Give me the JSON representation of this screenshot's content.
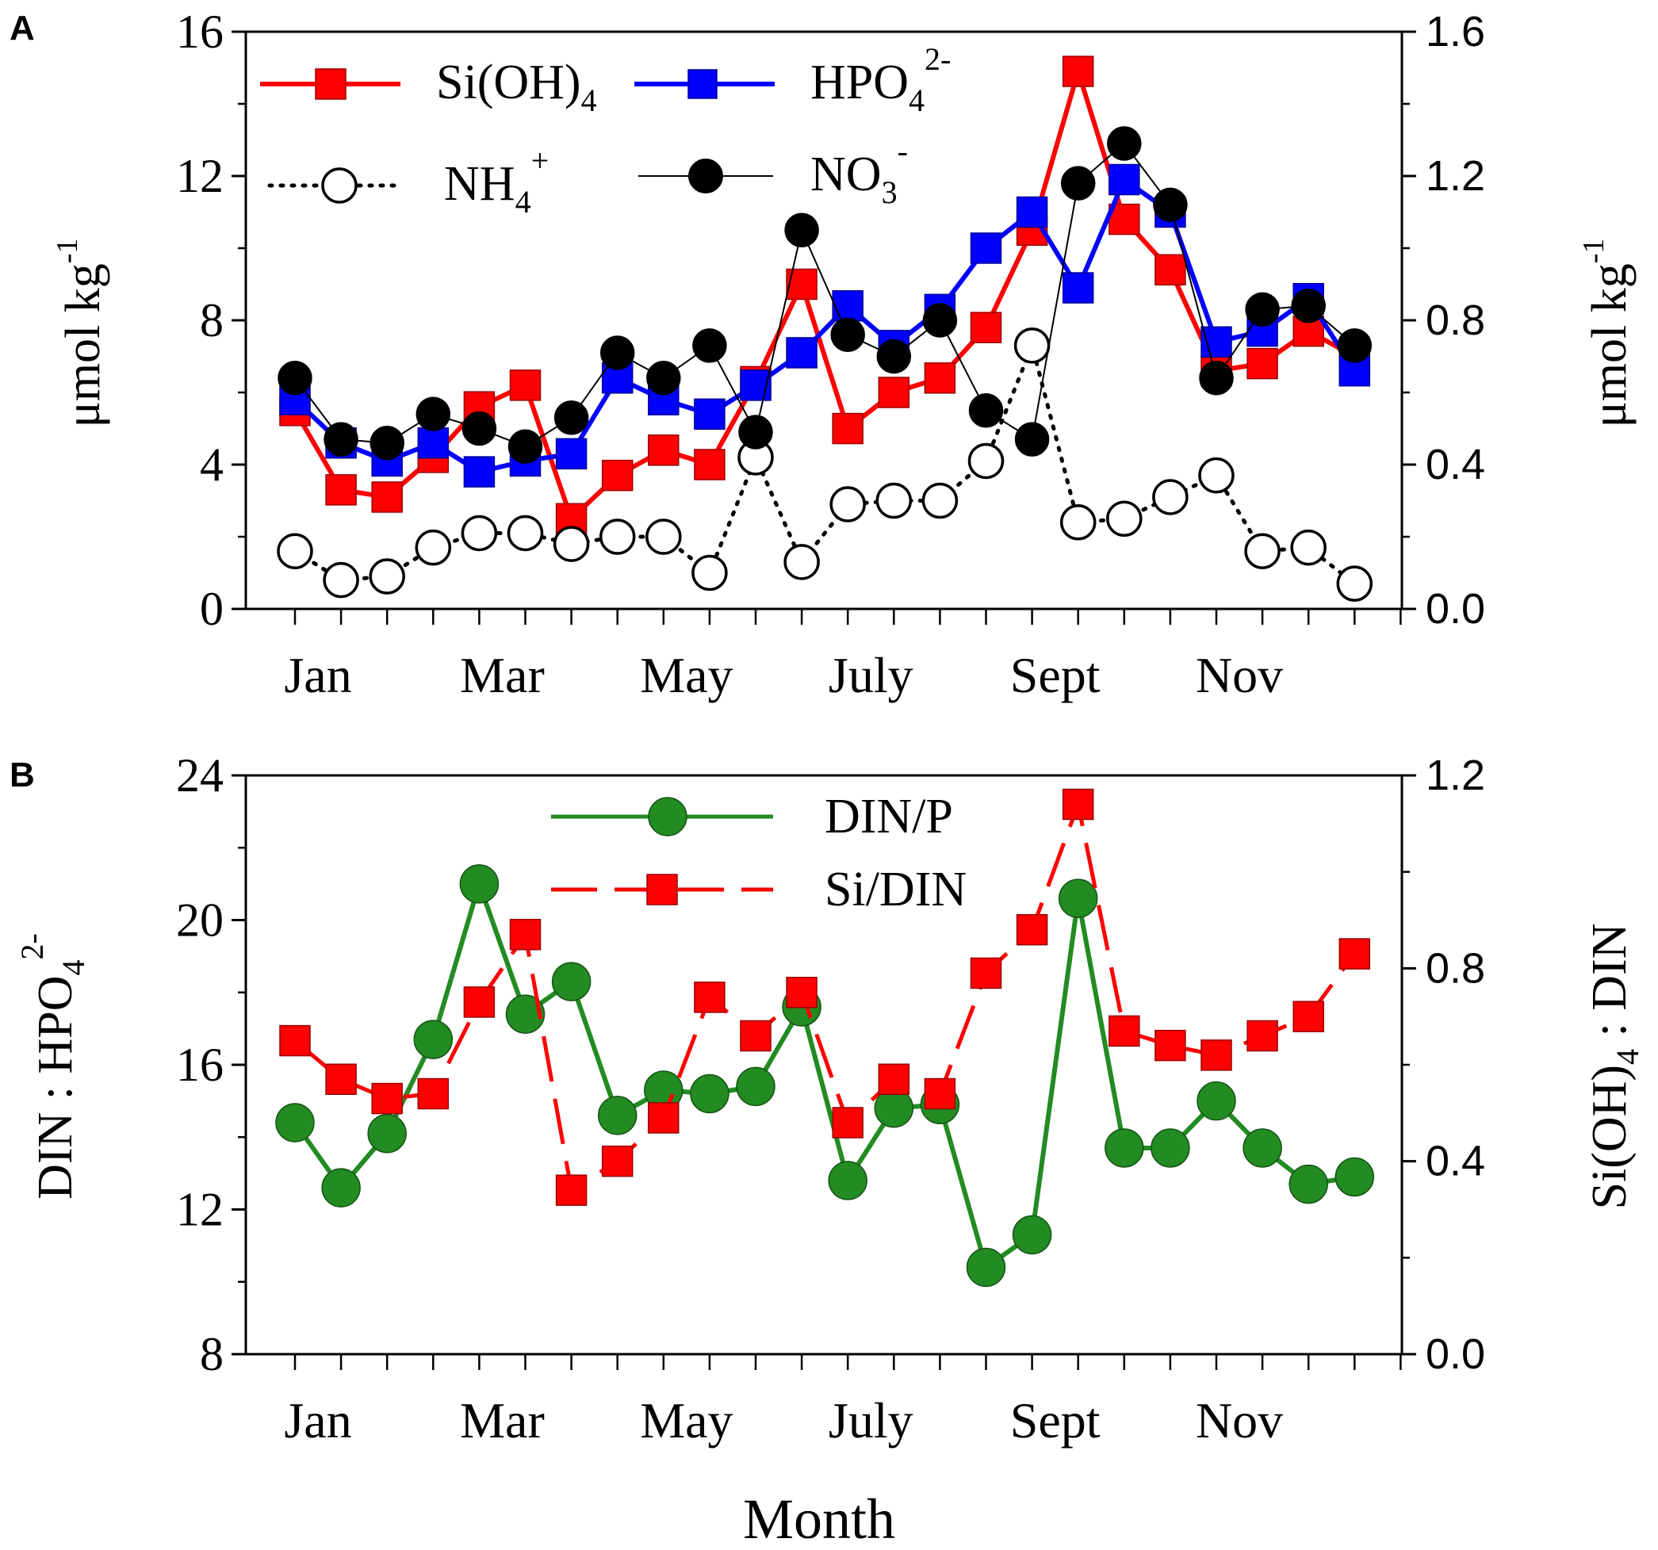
{
  "chart_data": [
    {
      "type": "line",
      "panel_label": "A",
      "title": "",
      "x": [
        1,
        2,
        3,
        4,
        5,
        6,
        7,
        8,
        9,
        10,
        11,
        12,
        13,
        14,
        15,
        16,
        17,
        18,
        19,
        20,
        21,
        22,
        23,
        24,
        25
      ],
      "xlabel": "",
      "x_tick_labels": [
        "Jan",
        "Mar",
        "May",
        "July",
        "Sept",
        "Nov"
      ],
      "x_tick_positions": [
        1.5,
        5.5,
        9.5,
        13.5,
        17.5,
        21.5
      ],
      "ylabel": "μmol kg",
      "ylabel_sup": "-1",
      "ylim": [
        0,
        16
      ],
      "y_ticks": [
        0,
        4,
        8,
        12,
        16
      ],
      "y_tick_labels": [
        "0",
        "4",
        "8",
        "12",
        "16"
      ],
      "ylabel_right": "μmol kg",
      "ylabel_right_sup": "-1",
      "ylim_right": [
        0,
        1.6
      ],
      "y_ticks_right": [
        0,
        0.4,
        0.8,
        1.2,
        1.6
      ],
      "y_tick_labels_right": [
        "0.0",
        "0.4",
        "0.8",
        "1.2",
        "1.6"
      ],
      "grid": false,
      "legend_position": "top-left",
      "series": [
        {
          "name": "Si(OH)4",
          "label": "Si(OH)",
          "sub": "4",
          "axis": "left",
          "color": "#ff0000",
          "marker": "square",
          "line": "solid",
          "values": [
            5.5,
            3.3,
            3.1,
            4.2,
            5.6,
            6.2,
            2.5,
            3.7,
            4.4,
            4.0,
            6.3,
            9.0,
            5.0,
            6.0,
            6.4,
            7.8,
            10.5,
            14.9,
            10.8,
            9.4,
            6.6,
            6.8,
            7.7,
            7.0,
            null
          ]
        },
        {
          "name": "HPO4 2-",
          "label": "HPO",
          "sub": "4",
          "sup": "2-",
          "axis": "right",
          "color": "#0000ff",
          "marker": "square",
          "line": "solid",
          "values": [
            0.58,
            0.46,
            0.41,
            0.46,
            0.38,
            0.41,
            0.43,
            0.64,
            0.58,
            0.54,
            0.62,
            0.71,
            0.84,
            0.73,
            0.83,
            1.0,
            1.1,
            0.89,
            1.19,
            1.1,
            0.74,
            0.77,
            0.86,
            0.66,
            null
          ]
        },
        {
          "name": "NH4+",
          "label": "NH",
          "sub": "4",
          "sup": "+",
          "axis": "left",
          "color": "#000000",
          "marker": "open-circle",
          "line": "dotted",
          "values": [
            1.6,
            0.8,
            0.9,
            1.7,
            2.1,
            2.1,
            1.8,
            2.0,
            2.0,
            1.0,
            4.2,
            1.3,
            2.9,
            3.0,
            3.0,
            4.1,
            7.3,
            2.4,
            2.5,
            3.1,
            3.7,
            1.6,
            1.7,
            0.7,
            null
          ]
        },
        {
          "name": "NO3-",
          "label": "NO",
          "sub": "3",
          "sup": "-",
          "axis": "left",
          "color": "#000000",
          "marker": "filled-circle",
          "line": "thin-solid",
          "values": [
            6.4,
            4.7,
            4.6,
            5.4,
            5.0,
            4.5,
            5.3,
            7.1,
            6.4,
            7.3,
            4.9,
            10.5,
            7.6,
            7.0,
            8.0,
            5.5,
            4.7,
            11.8,
            12.9,
            11.2,
            6.4,
            8.3,
            8.4,
            7.3,
            null
          ]
        }
      ]
    },
    {
      "type": "line",
      "panel_label": "B",
      "title": "",
      "x": [
        1,
        2,
        3,
        4,
        5,
        6,
        7,
        8,
        9,
        10,
        11,
        12,
        13,
        14,
        15,
        16,
        17,
        18,
        19,
        20,
        21,
        22,
        23,
        24,
        25
      ],
      "xlabel": "Month",
      "x_tick_labels": [
        "Jan",
        "Mar",
        "May",
        "July",
        "Sept",
        "Nov"
      ],
      "x_tick_positions": [
        1.5,
        5.5,
        9.5,
        13.5,
        17.5,
        21.5
      ],
      "ylabel": "DIN : HPO",
      "ylabel_sub": "4",
      "ylabel_sup": "2-",
      "ylim": [
        8,
        24
      ],
      "y_ticks": [
        8,
        12,
        16,
        20,
        24
      ],
      "y_tick_labels": [
        "8",
        "12",
        "16",
        "20",
        "24"
      ],
      "ylabel_right": "Si(OH)",
      "ylabel_right_sub": "4",
      "ylabel_right_suffix": " : DIN",
      "ylim_right": [
        0,
        1.2
      ],
      "y_ticks_right": [
        0,
        0.4,
        0.8,
        1.2
      ],
      "y_tick_labels_right": [
        "0.0",
        "0.4",
        "0.8",
        "1.2"
      ],
      "grid": false,
      "legend_position": "top-center",
      "series": [
        {
          "name": "DIN/P",
          "axis": "left",
          "color": "#228b22",
          "marker": "filled-circle",
          "line": "solid",
          "values": [
            14.4,
            12.6,
            14.1,
            16.7,
            21.0,
            17.4,
            18.3,
            14.6,
            15.3,
            15.2,
            15.4,
            17.6,
            12.8,
            14.8,
            14.9,
            10.4,
            11.3,
            20.6,
            13.7,
            13.7,
            15.0,
            13.7,
            12.7,
            12.9,
            null
          ]
        },
        {
          "name": "Si/DIN",
          "axis": "right",
          "color": "#ff0000",
          "marker": "square",
          "line": "dashed",
          "values": [
            0.65,
            0.57,
            0.53,
            0.54,
            0.73,
            0.87,
            0.34,
            0.4,
            0.49,
            0.74,
            0.66,
            0.75,
            0.48,
            0.57,
            0.54,
            0.79,
            0.88,
            1.14,
            0.67,
            0.64,
            0.62,
            0.66,
            0.7,
            0.83,
            null
          ]
        }
      ]
    }
  ]
}
